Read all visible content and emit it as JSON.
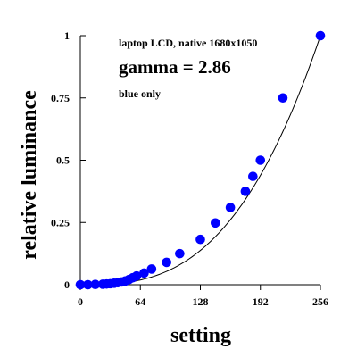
{
  "chart_data": {
    "type": "scatter",
    "annotations": {
      "line1": "laptop LCD, native 1680x1050",
      "line2": "gamma = 2.86",
      "line3": "blue only"
    },
    "xlabel": "setting",
    "ylabel": "relative luminance",
    "xlim": [
      0,
      256
    ],
    "ylim": [
      0,
      1
    ],
    "x_ticks": [
      0,
      64,
      128,
      192,
      256
    ],
    "y_ticks": [
      0,
      0.25,
      0.5,
      0.75,
      1
    ],
    "x_tick_labels": [
      "0",
      "64",
      "128",
      "192",
      "256"
    ],
    "y_tick_labels": [
      "0",
      "0.25",
      "0.5",
      "0.75",
      "1"
    ],
    "grid": false,
    "point_color": "#0000ff",
    "curve": {
      "type": "power",
      "gamma": 2.86,
      "color": "#000000"
    },
    "series": [
      {
        "points": [
          [
            0,
            0.0
          ],
          [
            8,
            0.0
          ],
          [
            16,
            0.001
          ],
          [
            24,
            0.002
          ],
          [
            28,
            0.003
          ],
          [
            32,
            0.004
          ],
          [
            36,
            0.006
          ],
          [
            40,
            0.008
          ],
          [
            44,
            0.011
          ],
          [
            48,
            0.015
          ],
          [
            52,
            0.021
          ],
          [
            56,
            0.028
          ],
          [
            60,
            0.035
          ],
          [
            68,
            0.047
          ],
          [
            76,
            0.063
          ],
          [
            92,
            0.09
          ],
          [
            106,
            0.125
          ],
          [
            128,
            0.182
          ],
          [
            144,
            0.248
          ],
          [
            160,
            0.31
          ],
          [
            176,
            0.375
          ],
          [
            184,
            0.435
          ],
          [
            192,
            0.5
          ],
          [
            216,
            0.75
          ],
          [
            256,
            1.0
          ]
        ]
      }
    ]
  }
}
